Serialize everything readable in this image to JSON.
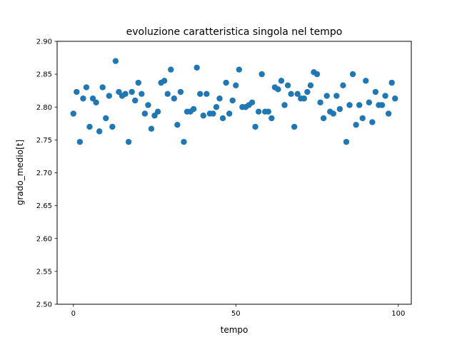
{
  "chart_data": {
    "type": "scatter",
    "title": "evoluzione caratteristica singola nel tempo",
    "xlabel": "tempo",
    "ylabel": "grado_medio[t]",
    "xlim": [
      -5,
      104
    ],
    "ylim": [
      2.5,
      2.9
    ],
    "xticks": [
      0,
      50,
      100
    ],
    "xtick_labels": [
      "0",
      "50",
      "100"
    ],
    "yticks": [
      2.5,
      2.55,
      2.6,
      2.65,
      2.7,
      2.75,
      2.8,
      2.85,
      2.9
    ],
    "ytick_labels": [
      "2.50",
      "2.55",
      "2.60",
      "2.65",
      "2.70",
      "2.75",
      "2.80",
      "2.85",
      "2.90"
    ],
    "grid": false,
    "marker_color": "#1f77b4",
    "series": [
      {
        "name": "grado_medio",
        "x": [
          0,
          1,
          2,
          3,
          4,
          5,
          6,
          7,
          8,
          9,
          10,
          11,
          12,
          13,
          14,
          15,
          16,
          17,
          18,
          19,
          20,
          21,
          22,
          23,
          24,
          25,
          26,
          27,
          28,
          29,
          30,
          31,
          32,
          33,
          34,
          35,
          36,
          37,
          38,
          39,
          40,
          41,
          42,
          43,
          44,
          45,
          46,
          47,
          48,
          49,
          50,
          51,
          52,
          53,
          54,
          55,
          56,
          57,
          58,
          59,
          60,
          61,
          62,
          63,
          64,
          65,
          66,
          67,
          68,
          69,
          70,
          71,
          72,
          73,
          74,
          75,
          76,
          77,
          78,
          79,
          80,
          81,
          82,
          83,
          84,
          85,
          86,
          87,
          88,
          89,
          90,
          91,
          92,
          93,
          94,
          95,
          96,
          97,
          98,
          99
        ],
        "y": [
          2.79,
          2.823,
          2.747,
          2.813,
          2.83,
          2.77,
          2.813,
          2.807,
          2.763,
          2.83,
          2.783,
          2.817,
          2.77,
          2.87,
          2.823,
          2.817,
          2.82,
          2.747,
          2.823,
          2.81,
          2.837,
          2.82,
          2.79,
          2.803,
          2.767,
          2.787,
          2.793,
          2.837,
          2.84,
          2.82,
          2.857,
          2.813,
          2.773,
          2.823,
          2.747,
          2.793,
          2.793,
          2.797,
          2.86,
          2.82,
          2.787,
          2.82,
          2.79,
          2.79,
          2.8,
          2.813,
          2.783,
          2.837,
          2.79,
          2.81,
          2.833,
          2.857,
          2.8,
          2.8,
          2.803,
          2.807,
          2.77,
          2.793,
          2.85,
          2.793,
          2.793,
          2.783,
          2.83,
          2.827,
          2.84,
          2.803,
          2.833,
          2.82,
          2.77,
          2.82,
          2.813,
          2.813,
          2.823,
          2.833,
          2.853,
          2.85,
          2.807,
          2.783,
          2.817,
          2.793,
          2.79,
          2.817,
          2.797,
          2.833,
          2.747,
          2.803,
          2.85,
          2.773,
          2.803,
          2.783,
          2.84,
          2.807,
          2.777,
          2.823,
          2.803,
          2.803,
          2.817,
          2.79,
          2.837,
          2.813
        ]
      }
    ]
  }
}
